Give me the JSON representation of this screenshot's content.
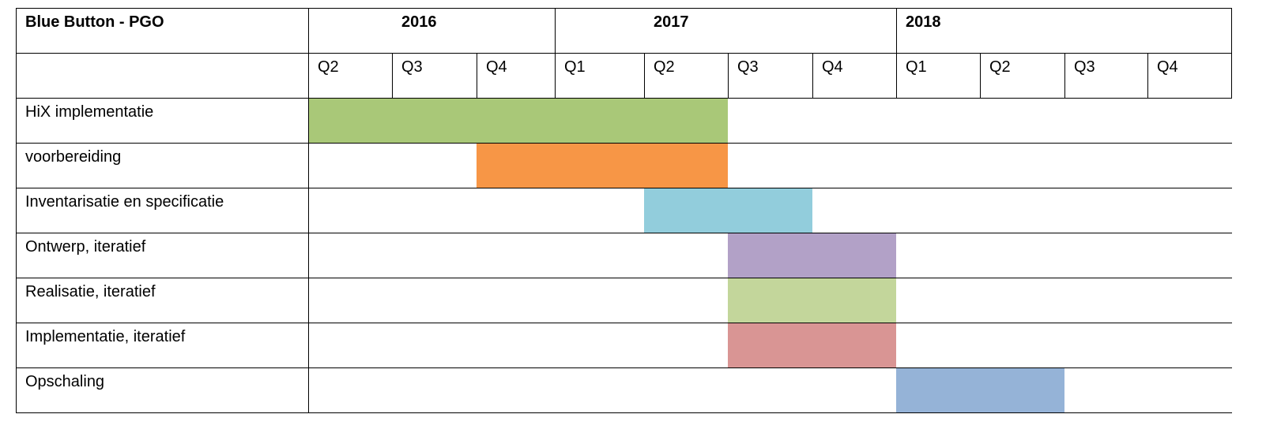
{
  "table": {
    "title": "Blue Button - PGO",
    "years": [
      {
        "label": "2016",
        "quarters": 3
      },
      {
        "label": "2017",
        "quarters": 4
      },
      {
        "label": "2018",
        "quarters": 4
      }
    ],
    "quarters": [
      "Q2",
      "Q3",
      "Q4",
      "Q1",
      "Q2",
      "Q3",
      "Q4",
      "Q1",
      "Q2",
      "Q3",
      "Q4"
    ],
    "tasks": [
      {
        "label": "HiX implementatie",
        "start": 0,
        "end": 5,
        "color": "#a9c878"
      },
      {
        "label": "voorbereiding",
        "start": 2,
        "end": 5,
        "color": "#f79646"
      },
      {
        "label": "Inventarisatie en specificatie",
        "start": 4,
        "end": 6,
        "color": "#92cddc"
      },
      {
        "label": "Ontwerp, iteratief",
        "start": 5,
        "end": 7,
        "color": "#b2a1c7"
      },
      {
        "label": "Realisatie, iteratief",
        "start": 5,
        "end": 7,
        "color": "#c3d69b"
      },
      {
        "label": "Implementatie, iteratief",
        "start": 5,
        "end": 7,
        "color": "#d99594"
      },
      {
        "label": "Opschaling",
        "start": 7,
        "end": 9,
        "color": "#95b3d7"
      }
    ]
  }
}
